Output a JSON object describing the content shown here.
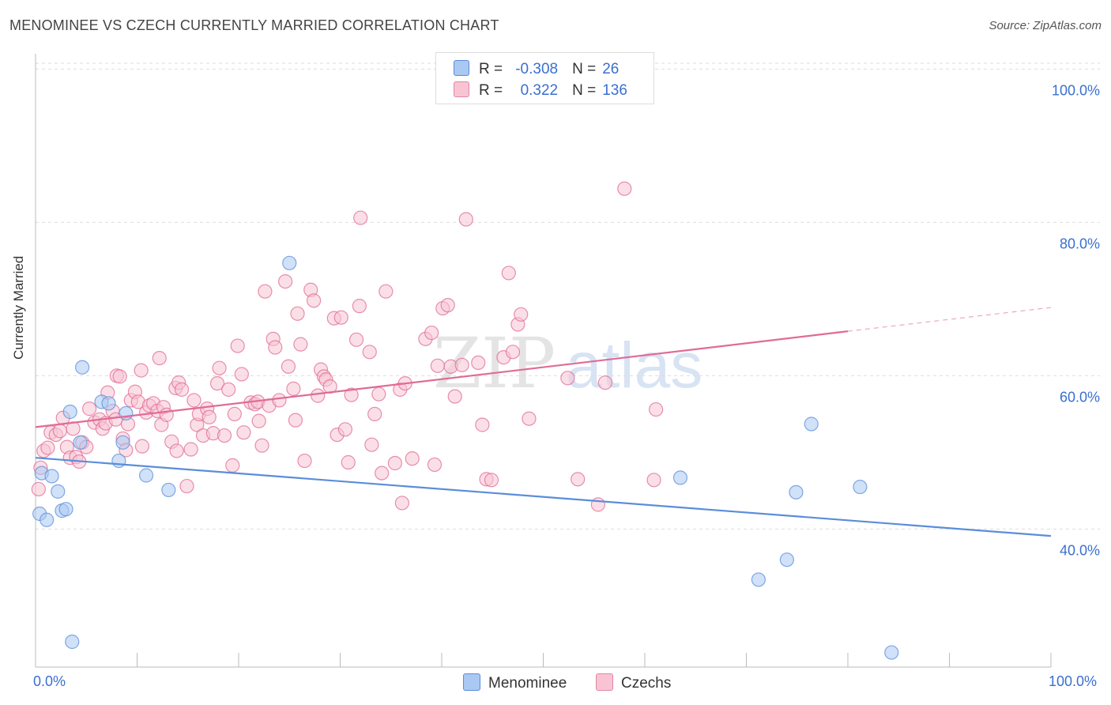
{
  "title": "MENOMINEE VS CZECH CURRENTLY MARRIED CORRELATION CHART",
  "source": "Source: ZipAtlas.com",
  "watermark_a": "ZIP",
  "watermark_b": "atlas",
  "legend": {
    "r_label": "R =",
    "n_label": "N =",
    "rows": [
      {
        "r": "-0.308",
        "n": "26",
        "fill": "#a9c8f2",
        "stroke": "#5b8dd9"
      },
      {
        "r": "0.322",
        "n": "136",
        "fill": "#f8c4d4",
        "stroke": "#e087a6"
      }
    ]
  },
  "bottom_legend": [
    {
      "label": "Menominee",
      "fill": "#a9c8f2",
      "stroke": "#5b8dd9"
    },
    {
      "label": "Czechs",
      "fill": "#f8c4d4",
      "stroke": "#e087a6"
    }
  ],
  "chart_data": {
    "type": "scatter",
    "ylabel": "Currently Married",
    "xlabel": "",
    "xlim": [
      0,
      100
    ],
    "ylim": [
      22,
      102
    ],
    "x_tick_labels": {
      "left": "0.0%",
      "right": "100.0%"
    },
    "y_ticks": [
      {
        "value": 40,
        "label": "40.0%"
      },
      {
        "value": 60,
        "label": "60.0%"
      },
      {
        "value": 80,
        "label": "80.0%"
      },
      {
        "value": 100,
        "label": "100.0%"
      }
    ],
    "grid": true,
    "series": [
      {
        "name": "Menominee",
        "color": "#5b8dd9",
        "fill": "#a9c8f2",
        "trend": {
          "x0": 0,
          "y0": 49.3,
          "x1": 100,
          "y1": 39.1
        },
        "points": [
          [
            0.4,
            42.0
          ],
          [
            1.1,
            41.2
          ],
          [
            0.6,
            47.3
          ],
          [
            1.6,
            46.9
          ],
          [
            2.2,
            44.9
          ],
          [
            2.6,
            42.4
          ],
          [
            3.0,
            42.6
          ],
          [
            3.4,
            55.3
          ],
          [
            3.6,
            25.3
          ],
          [
            4.4,
            51.3
          ],
          [
            4.6,
            61.1
          ],
          [
            6.5,
            56.6
          ],
          [
            7.2,
            56.4
          ],
          [
            8.2,
            48.9
          ],
          [
            8.6,
            51.3
          ],
          [
            8.9,
            55.1
          ],
          [
            10.9,
            47.0
          ],
          [
            13.1,
            45.1
          ],
          [
            25.0,
            74.7
          ],
          [
            71.2,
            33.4
          ],
          [
            74.0,
            36.0
          ],
          [
            74.9,
            44.8
          ],
          [
            76.4,
            53.7
          ],
          [
            81.2,
            45.5
          ],
          [
            84.3,
            23.9
          ],
          [
            63.5,
            46.7
          ]
        ]
      },
      {
        "name": "Czechs",
        "color": "#e06b96",
        "fill": "#f8c4d4",
        "trend": {
          "x0": 0,
          "y0": 53.3,
          "x1": 80,
          "y1": 65.8
        },
        "trend_ext": {
          "x0": 80,
          "y0": 65.8,
          "x1": 100,
          "y1": 68.9
        },
        "points": [
          [
            0.3,
            45.2
          ],
          [
            0.5,
            48.0
          ],
          [
            0.8,
            50.2
          ],
          [
            1.2,
            50.6
          ],
          [
            1.5,
            52.6
          ],
          [
            2.0,
            52.3
          ],
          [
            2.4,
            52.8
          ],
          [
            2.7,
            54.5
          ],
          [
            3.1,
            50.7
          ],
          [
            3.4,
            49.3
          ],
          [
            3.7,
            53.1
          ],
          [
            4.0,
            49.4
          ],
          [
            4.3,
            48.8
          ],
          [
            4.6,
            51.3
          ],
          [
            5.0,
            50.7
          ],
          [
            5.3,
            55.7
          ],
          [
            5.8,
            53.9
          ],
          [
            6.3,
            54.3
          ],
          [
            6.6,
            53.1
          ],
          [
            6.9,
            53.8
          ],
          [
            7.1,
            57.8
          ],
          [
            7.6,
            55.4
          ],
          [
            7.9,
            54.3
          ],
          [
            8.0,
            60.0
          ],
          [
            8.3,
            59.9
          ],
          [
            8.6,
            51.8
          ],
          [
            8.9,
            50.3
          ],
          [
            9.1,
            53.7
          ],
          [
            9.4,
            56.8
          ],
          [
            9.8,
            57.9
          ],
          [
            10.1,
            56.6
          ],
          [
            10.4,
            60.7
          ],
          [
            10.5,
            50.8
          ],
          [
            10.9,
            55.2
          ],
          [
            11.2,
            56.1
          ],
          [
            11.6,
            56.4
          ],
          [
            12.0,
            55.4
          ],
          [
            12.2,
            62.3
          ],
          [
            12.4,
            53.6
          ],
          [
            12.6,
            55.9
          ],
          [
            12.9,
            54.9
          ],
          [
            13.4,
            51.4
          ],
          [
            13.8,
            58.4
          ],
          [
            13.9,
            50.2
          ],
          [
            14.1,
            59.1
          ],
          [
            14.4,
            58.2
          ],
          [
            14.9,
            45.6
          ],
          [
            15.3,
            50.4
          ],
          [
            15.6,
            56.8
          ],
          [
            15.9,
            53.6
          ],
          [
            16.1,
            55.0
          ],
          [
            16.5,
            52.2
          ],
          [
            16.9,
            55.7
          ],
          [
            17.1,
            54.6
          ],
          [
            17.5,
            52.5
          ],
          [
            17.9,
            59.0
          ],
          [
            18.1,
            61.0
          ],
          [
            18.6,
            52.2
          ],
          [
            19.0,
            58.2
          ],
          [
            19.4,
            48.3
          ],
          [
            19.6,
            55.0
          ],
          [
            19.9,
            63.9
          ],
          [
            20.3,
            60.2
          ],
          [
            20.5,
            52.6
          ],
          [
            21.2,
            56.5
          ],
          [
            21.6,
            56.3
          ],
          [
            21.9,
            56.6
          ],
          [
            22.0,
            54.1
          ],
          [
            22.3,
            50.9
          ],
          [
            22.6,
            71.0
          ],
          [
            23.0,
            56.1
          ],
          [
            23.4,
            64.8
          ],
          [
            23.6,
            63.7
          ],
          [
            24.0,
            56.8
          ],
          [
            24.6,
            72.3
          ],
          [
            24.9,
            61.2
          ],
          [
            25.4,
            58.3
          ],
          [
            25.6,
            54.2
          ],
          [
            25.8,
            68.1
          ],
          [
            26.1,
            64.1
          ],
          [
            26.5,
            48.9
          ],
          [
            27.1,
            71.2
          ],
          [
            27.4,
            69.8
          ],
          [
            27.8,
            57.4
          ],
          [
            28.1,
            60.8
          ],
          [
            28.4,
            59.9
          ],
          [
            28.6,
            59.5
          ],
          [
            29.0,
            58.6
          ],
          [
            29.4,
            67.5
          ],
          [
            29.7,
            52.3
          ],
          [
            30.1,
            67.6
          ],
          [
            30.5,
            53.0
          ],
          [
            30.8,
            48.7
          ],
          [
            31.1,
            57.5
          ],
          [
            31.6,
            64.7
          ],
          [
            31.9,
            69.1
          ],
          [
            32.0,
            80.6
          ],
          [
            32.9,
            63.1
          ],
          [
            33.1,
            51.0
          ],
          [
            33.4,
            55.0
          ],
          [
            33.8,
            57.6
          ],
          [
            34.1,
            47.3
          ],
          [
            34.5,
            71.0
          ],
          [
            35.4,
            48.6
          ],
          [
            35.9,
            58.2
          ],
          [
            36.1,
            43.4
          ],
          [
            36.4,
            59.0
          ],
          [
            37.1,
            49.2
          ],
          [
            38.4,
            64.8
          ],
          [
            39.0,
            65.6
          ],
          [
            39.3,
            48.4
          ],
          [
            39.6,
            61.3
          ],
          [
            40.1,
            68.8
          ],
          [
            40.6,
            69.2
          ],
          [
            40.9,
            61.2
          ],
          [
            41.3,
            57.3
          ],
          [
            42.0,
            61.4
          ],
          [
            42.4,
            80.4
          ],
          [
            43.6,
            61.7
          ],
          [
            44.0,
            53.6
          ],
          [
            44.4,
            46.5
          ],
          [
            44.9,
            46.4
          ],
          [
            46.1,
            62.4
          ],
          [
            46.6,
            73.4
          ],
          [
            47.0,
            63.1
          ],
          [
            47.5,
            66.7
          ],
          [
            47.8,
            68.0
          ],
          [
            48.6,
            54.4
          ],
          [
            52.4,
            59.7
          ],
          [
            53.4,
            46.5
          ],
          [
            55.4,
            43.2
          ],
          [
            56.1,
            59.1
          ],
          [
            58.0,
            84.4
          ],
          [
            60.9,
            46.4
          ],
          [
            61.1,
            55.6
          ]
        ]
      }
    ]
  }
}
